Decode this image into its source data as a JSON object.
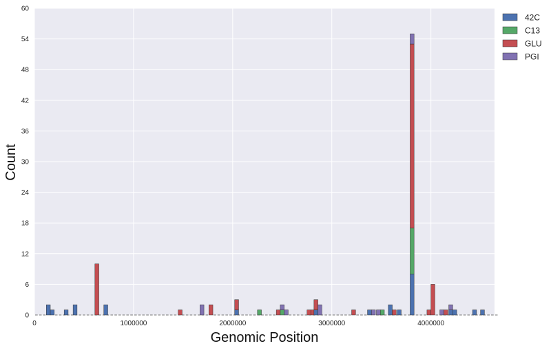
{
  "chart_data": {
    "type": "bar",
    "stacked": true,
    "title": "",
    "xlabel": "Genomic Position",
    "ylabel": "Count",
    "xlim": [
      0,
      4641652
    ],
    "ylim": [
      0,
      60
    ],
    "xticks": [
      0,
      1000000,
      2000000,
      3000000,
      4000000
    ],
    "xtick_labels": [
      "0",
      "1000000",
      "2000000",
      "3000000",
      "4000000"
    ],
    "yticks": [
      0,
      6,
      12,
      18,
      24,
      30,
      36,
      42,
      48,
      54,
      60
    ],
    "ytick_labels": [
      "0",
      "6",
      "12",
      "18",
      "24",
      "30",
      "36",
      "42",
      "48",
      "54",
      "60"
    ],
    "bin_width": 40000,
    "grid": true,
    "legend_position": "outside-top-right",
    "bins": [
      120000,
      160000,
      300000,
      390000,
      610000,
      700000,
      1450000,
      1670000,
      1760000,
      2020000,
      2250000,
      2440000,
      2480000,
      2520000,
      2750000,
      2790000,
      2820000,
      2860000,
      3200000,
      3360000,
      3400000,
      3450000,
      3490000,
      3570000,
      3610000,
      3660000,
      3790000,
      3960000,
      4000000,
      4090000,
      4130000,
      4180000,
      4220000,
      4420000,
      4500000
    ],
    "series": [
      {
        "name": "42C",
        "color": "#4c72b0",
        "values": [
          2,
          1,
          1,
          2,
          0,
          2,
          0,
          0,
          0,
          1,
          0,
          0,
          0,
          0,
          0,
          0,
          1,
          0,
          0,
          1,
          0,
          0,
          0,
          2,
          0,
          1,
          8,
          0,
          0,
          0,
          0,
          1,
          1,
          1,
          1
        ]
      },
      {
        "name": "C13",
        "color": "#55a868",
        "values": [
          0,
          0,
          0,
          0,
          0,
          0,
          0,
          0,
          0,
          0,
          1,
          0,
          1,
          0,
          0,
          0,
          0,
          0,
          0,
          0,
          0,
          0,
          1,
          0,
          0,
          0,
          9,
          0,
          0,
          0,
          0,
          0,
          0,
          0,
          0
        ]
      },
      {
        "name": "GLU",
        "color": "#c44e52",
        "values": [
          0,
          0,
          0,
          0,
          10,
          0,
          1,
          0,
          2,
          2,
          0,
          1,
          0,
          0,
          1,
          1,
          2,
          0,
          1,
          0,
          0,
          0,
          0,
          0,
          1,
          0,
          36,
          1,
          6,
          0,
          1,
          0,
          0,
          0,
          0
        ]
      },
      {
        "name": "PGI",
        "color": "#8172b2",
        "values": [
          0,
          0,
          0,
          0,
          0,
          0,
          0,
          2,
          0,
          0,
          0,
          0,
          1,
          1,
          0,
          0,
          0,
          2,
          0,
          0,
          1,
          1,
          0,
          0,
          0,
          0,
          2,
          0,
          0,
          1,
          0,
          1,
          0,
          0,
          0
        ]
      }
    ]
  },
  "colors": {
    "plot_background": "#eaeaf2",
    "grid": "#ffffff"
  }
}
